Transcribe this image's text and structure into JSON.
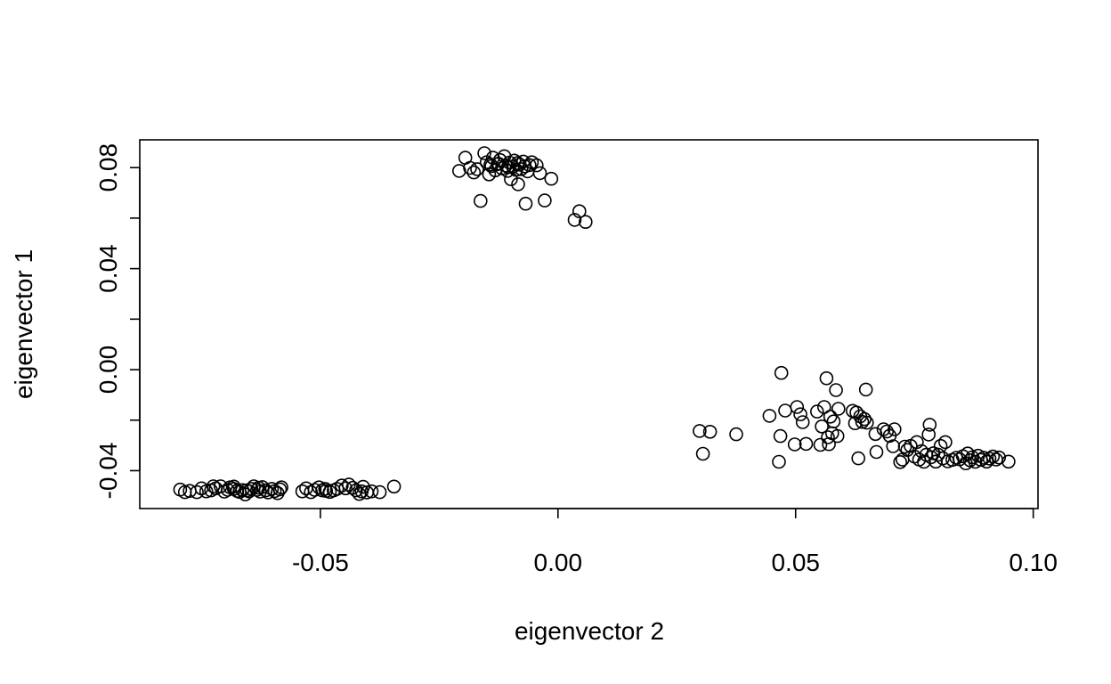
{
  "chart_data": {
    "type": "scatter",
    "xlabel": "eigenvector 2",
    "ylabel": "eigenvector 1",
    "xlim": [
      -0.088,
      0.101
    ],
    "ylim": [
      -0.055,
      0.091
    ],
    "xticks": [
      -0.05,
      0.0,
      0.05,
      0.1
    ],
    "xtick_labels": [
      "-0.05",
      "0.00",
      "0.05",
      "0.10"
    ],
    "yticks": [
      -0.04,
      -0.02,
      0.0,
      0.02,
      0.04,
      0.06,
      0.08
    ],
    "ytick_labels": [
      "-0.04",
      "",
      "0.00",
      "",
      "0.04",
      "",
      "0.08"
    ],
    "marker": "open-circle",
    "marker_color": "#000000",
    "grid": false,
    "legend": "none",
    "series": [
      {
        "points": [
          [
            -0.0795,
            -0.0475
          ],
          [
            -0.0785,
            -0.0485
          ],
          [
            -0.0775,
            -0.048
          ],
          [
            -0.076,
            -0.0485
          ],
          [
            -0.075,
            -0.047
          ],
          [
            -0.074,
            -0.0482
          ],
          [
            -0.073,
            -0.0478
          ],
          [
            -0.072,
            -0.047
          ],
          [
            -0.071,
            -0.0462
          ],
          [
            -0.0702,
            -0.0483
          ],
          [
            -0.0695,
            -0.0476
          ],
          [
            -0.069,
            -0.0466
          ],
          [
            -0.0682,
            -0.0472
          ],
          [
            -0.0675,
            -0.048
          ],
          [
            -0.067,
            -0.0484
          ],
          [
            -0.0664,
            -0.0477
          ],
          [
            -0.0658,
            -0.0494
          ],
          [
            -0.065,
            -0.0482
          ],
          [
            -0.0645,
            -0.0472
          ],
          [
            -0.064,
            -0.0462
          ],
          [
            -0.0633,
            -0.0476
          ],
          [
            -0.0627,
            -0.0483
          ],
          [
            -0.0622,
            -0.0465
          ],
          [
            -0.0615,
            -0.0478
          ],
          [
            -0.061,
            -0.0486
          ],
          [
            -0.0602,
            -0.0472
          ],
          [
            -0.0596,
            -0.0481
          ],
          [
            -0.059,
            -0.0489
          ],
          [
            -0.0585,
            -0.0474
          ],
          [
            -0.0582,
            -0.0466
          ],
          [
            -0.0682,
            -0.0463
          ],
          [
            -0.0725,
            -0.0462
          ],
          [
            -0.0655,
            -0.0478
          ],
          [
            -0.063,
            -0.0468
          ],
          [
            -0.0538,
            -0.0482
          ],
          [
            -0.053,
            -0.047
          ],
          [
            -0.052,
            -0.0485
          ],
          [
            -0.0512,
            -0.0476
          ],
          [
            -0.0503,
            -0.0466
          ],
          [
            -0.0496,
            -0.0478
          ],
          [
            -0.049,
            -0.0472
          ],
          [
            -0.048,
            -0.0484
          ],
          [
            -0.0472,
            -0.0478
          ],
          [
            -0.0465,
            -0.0472
          ],
          [
            -0.0455,
            -0.0459
          ],
          [
            -0.0447,
            -0.047
          ],
          [
            -0.044,
            -0.0455
          ],
          [
            -0.0432,
            -0.0468
          ],
          [
            -0.0425,
            -0.0478
          ],
          [
            -0.0418,
            -0.0492
          ],
          [
            -0.041,
            -0.0464
          ],
          [
            -0.0402,
            -0.0486
          ],
          [
            -0.0392,
            -0.0482
          ],
          [
            -0.0375,
            -0.0485
          ],
          [
            -0.0345,
            -0.0463
          ],
          [
            -0.0488,
            -0.048
          ],
          [
            -0.0413,
            -0.0482
          ],
          [
            -0.0208,
            0.0787
          ],
          [
            -0.0195,
            0.0839
          ],
          [
            -0.0185,
            0.0799
          ],
          [
            -0.0177,
            0.0781
          ],
          [
            -0.017,
            0.0794
          ],
          [
            -0.0163,
            0.0668
          ],
          [
            -0.0155,
            0.0857
          ],
          [
            -0.015,
            0.0821
          ],
          [
            -0.0145,
            0.0773
          ],
          [
            -0.014,
            0.0806
          ],
          [
            -0.0137,
            0.0839
          ],
          [
            -0.0132,
            0.0789
          ],
          [
            -0.0127,
            0.0814
          ],
          [
            -0.0122,
            0.083
          ],
          [
            -0.0118,
            0.0797
          ],
          [
            -0.0113,
            0.0845
          ],
          [
            -0.011,
            0.0808
          ],
          [
            -0.0106,
            0.0787
          ],
          [
            -0.0102,
            0.082
          ],
          [
            -0.0099,
            0.0754
          ],
          [
            -0.0095,
            0.0804
          ],
          [
            -0.0092,
            0.0828
          ],
          [
            -0.0088,
            0.0791
          ],
          [
            -0.0084,
            0.0734
          ],
          [
            -0.0081,
            0.0812
          ],
          [
            -0.0077,
            0.0794
          ],
          [
            -0.0073,
            0.0824
          ],
          [
            -0.007,
            0.0805
          ],
          [
            -0.0068,
            0.0657
          ],
          [
            -0.0064,
            0.0785
          ],
          [
            -0.006,
            0.081
          ],
          [
            -0.0055,
            0.0821
          ],
          [
            -0.0045,
            0.0809
          ],
          [
            -0.0038,
            0.0778
          ],
          [
            -0.0028,
            0.067
          ],
          [
            -0.0014,
            0.0756
          ],
          [
            0.0035,
            0.0593
          ],
          [
            0.0045,
            0.0627
          ],
          [
            0.0058,
            0.0585
          ],
          [
            -0.0125,
            0.0815
          ],
          [
            -0.0105,
            0.0803
          ],
          [
            -0.0085,
            0.0818
          ],
          [
            -0.0142,
            0.0812
          ]
        ]
      },
      {
        "points": [
          [
            0.0298,
            -0.0243
          ],
          [
            0.0305,
            -0.0333
          ],
          [
            0.032,
            -0.0246
          ],
          [
            0.0375,
            -0.0256
          ],
          [
            0.0445,
            -0.0183
          ],
          [
            0.0465,
            -0.0365
          ],
          [
            0.0468,
            -0.0263
          ],
          [
            0.047,
            -0.0013
          ],
          [
            0.0478,
            -0.0162
          ],
          [
            0.0498,
            -0.0296
          ],
          [
            0.0503,
            -0.0148
          ],
          [
            0.051,
            -0.0177
          ],
          [
            0.0515,
            -0.0208
          ],
          [
            0.0522,
            -0.0294
          ],
          [
            0.0545,
            -0.0166
          ],
          [
            0.0552,
            -0.0298
          ],
          [
            0.0555,
            -0.0225
          ],
          [
            0.056,
            -0.0148
          ],
          [
            0.0565,
            -0.0034
          ],
          [
            0.0568,
            -0.0268
          ],
          [
            0.057,
            -0.0295
          ],
          [
            0.0573,
            -0.0186
          ],
          [
            0.0577,
            -0.0252
          ],
          [
            0.058,
            -0.0205
          ],
          [
            0.0585,
            -0.0081
          ],
          [
            0.0588,
            -0.0263
          ],
          [
            0.059,
            -0.0155
          ],
          [
            0.062,
            -0.0163
          ],
          [
            0.0625,
            -0.0212
          ],
          [
            0.0628,
            -0.017
          ],
          [
            0.0632,
            -0.0351
          ],
          [
            0.0636,
            -0.0185
          ],
          [
            0.064,
            -0.0207
          ],
          [
            0.0645,
            -0.0196
          ],
          [
            0.0648,
            -0.0079
          ],
          [
            0.065,
            -0.021
          ],
          [
            0.0668,
            -0.0255
          ],
          [
            0.067,
            -0.0326
          ],
          [
            0.0685,
            -0.0236
          ],
          [
            0.0692,
            -0.0245
          ],
          [
            0.0698,
            -0.0262
          ],
          [
            0.0705,
            -0.0303
          ],
          [
            0.0708,
            -0.0236
          ],
          [
            0.072,
            -0.0366
          ],
          [
            0.0725,
            -0.0356
          ],
          [
            0.073,
            -0.0305
          ],
          [
            0.0735,
            -0.0318
          ],
          [
            0.0742,
            -0.0302
          ],
          [
            0.075,
            -0.0344
          ],
          [
            0.0755,
            -0.0287
          ],
          [
            0.076,
            -0.0356
          ],
          [
            0.0765,
            -0.0323
          ],
          [
            0.077,
            -0.0365
          ],
          [
            0.0775,
            -0.0337
          ],
          [
            0.078,
            -0.0257
          ],
          [
            0.0782,
            -0.0218
          ],
          [
            0.0785,
            -0.0347
          ],
          [
            0.079,
            -0.0331
          ],
          [
            0.0795,
            -0.0364
          ],
          [
            0.08,
            -0.0337
          ],
          [
            0.0805,
            -0.0302
          ],
          [
            0.081,
            -0.0351
          ],
          [
            0.0815,
            -0.0287
          ],
          [
            0.082,
            -0.0363
          ],
          [
            0.083,
            -0.0357
          ],
          [
            0.0838,
            -0.0349
          ],
          [
            0.0845,
            -0.0355
          ],
          [
            0.0852,
            -0.0343
          ],
          [
            0.0858,
            -0.0371
          ],
          [
            0.0862,
            -0.0332
          ],
          [
            0.0867,
            -0.0359
          ],
          [
            0.0872,
            -0.0347
          ],
          [
            0.0878,
            -0.0365
          ],
          [
            0.0884,
            -0.0341
          ],
          [
            0.089,
            -0.0357
          ],
          [
            0.0896,
            -0.0349
          ],
          [
            0.0902,
            -0.0364
          ],
          [
            0.0908,
            -0.0352
          ],
          [
            0.0915,
            -0.0344
          ],
          [
            0.0922,
            -0.0356
          ],
          [
            0.0928,
            -0.0348
          ],
          [
            0.0948,
            -0.0364
          ]
        ]
      },
      {
        "points": []
      }
    ]
  }
}
